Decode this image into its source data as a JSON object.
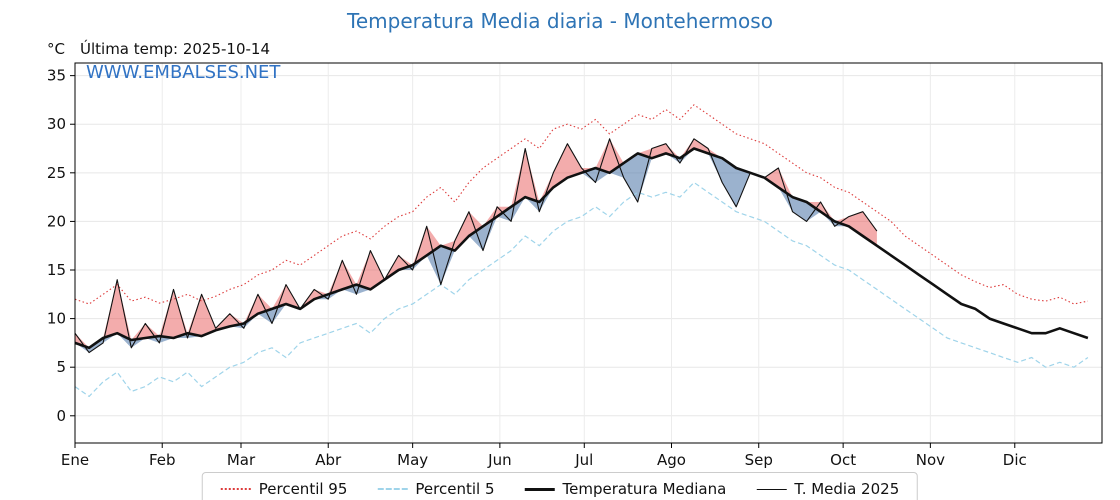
{
  "title": "Temperatura Media diaria - Montehermoso",
  "subtitle": {
    "units": "°C",
    "last_temp_label": "Última temp: 2025-10-14"
  },
  "watermark": "WWW.EMBALSES.NET",
  "legend": {
    "items": [
      {
        "label": "Percentil 95"
      },
      {
        "label": "Percentil 5"
      },
      {
        "label": "Temperatura Mediana"
      },
      {
        "label": "T. Media 2025"
      }
    ]
  },
  "chart_data": {
    "type": "line",
    "title": "Temperatura Media diaria - Montehermoso",
    "xlabel": "",
    "ylabel": "°C",
    "x_unit": "day_of_year",
    "x_step_days": 5,
    "months": [
      "Ene",
      "Feb",
      "Mar",
      "Abr",
      "May",
      "Jun",
      "Jul",
      "Ago",
      "Sep",
      "Oct",
      "Nov",
      "Dic"
    ],
    "month_start_days": [
      0,
      31,
      59,
      90,
      120,
      151,
      181,
      212,
      243,
      273,
      304,
      334
    ],
    "yticks": [
      0,
      5,
      10,
      15,
      20,
      25,
      30,
      35
    ],
    "ylim": [
      -2.8,
      36.3
    ],
    "grid": true,
    "legend_position": "bottom",
    "fills": {
      "above_median": "rgba(228,70,70,0.45)",
      "below_median": "rgba(82,122,170,0.58)"
    },
    "series": [
      {
        "name": "Percentil 95",
        "color": "#dd3b3b",
        "style": "dotted",
        "values": [
          12.0,
          11.5,
          12.5,
          13.5,
          11.8,
          12.2,
          11.6,
          12.0,
          12.5,
          11.8,
          12.3,
          13.0,
          13.5,
          14.5,
          15.0,
          16.0,
          15.5,
          16.5,
          17.5,
          18.5,
          19.0,
          18.2,
          19.5,
          20.5,
          21.0,
          22.5,
          23.5,
          22.0,
          24.0,
          25.5,
          26.5,
          27.5,
          28.5,
          27.5,
          29.5,
          30.0,
          29.5,
          30.5,
          29.0,
          30.0,
          31.0,
          30.5,
          31.5,
          30.5,
          32.0,
          31.0,
          30.0,
          29.0,
          28.5,
          28.0,
          27.0,
          26.0,
          25.0,
          24.5,
          23.5,
          23.0,
          22.0,
          21.0,
          20.0,
          18.5,
          17.5,
          16.5,
          15.5,
          14.5,
          13.8,
          13.2,
          13.5,
          12.5,
          12.0,
          11.8,
          12.2,
          11.5,
          11.8
        ]
      },
      {
        "name": "Percentil 5",
        "color": "#9fd4ea",
        "style": "dashed",
        "values": [
          3.0,
          2.0,
          3.5,
          4.5,
          2.5,
          3.0,
          4.0,
          3.5,
          4.5,
          3.0,
          4.0,
          5.0,
          5.5,
          6.5,
          7.0,
          6.0,
          7.5,
          8.0,
          8.5,
          9.0,
          9.5,
          8.5,
          10.0,
          11.0,
          11.5,
          12.5,
          13.5,
          12.5,
          14.0,
          15.0,
          16.0,
          17.0,
          18.5,
          17.5,
          19.0,
          20.0,
          20.5,
          21.5,
          20.5,
          22.0,
          23.0,
          22.5,
          23.0,
          22.5,
          24.0,
          23.0,
          22.0,
          21.0,
          20.5,
          20.0,
          19.0,
          18.0,
          17.5,
          16.5,
          15.5,
          15.0,
          14.0,
          13.0,
          12.0,
          11.0,
          10.0,
          9.0,
          8.0,
          7.5,
          7.0,
          6.5,
          6.0,
          5.5,
          6.0,
          5.0,
          5.5,
          5.0,
          6.0
        ]
      },
      {
        "name": "Temperatura Mediana",
        "color": "#111111",
        "style": "solid-thick",
        "values": [
          7.5,
          7.0,
          8.0,
          8.5,
          7.8,
          8.0,
          8.2,
          8.0,
          8.5,
          8.2,
          8.8,
          9.2,
          9.5,
          10.5,
          11.0,
          11.5,
          11.0,
          12.0,
          12.5,
          13.0,
          13.5,
          13.0,
          14.0,
          15.0,
          15.5,
          16.5,
          17.5,
          17.0,
          18.5,
          19.5,
          20.5,
          21.5,
          22.5,
          22.0,
          23.5,
          24.5,
          25.0,
          25.5,
          25.0,
          26.0,
          27.0,
          26.5,
          27.0,
          26.5,
          27.5,
          27.0,
          26.5,
          25.5,
          25.0,
          24.5,
          23.5,
          22.5,
          22.0,
          21.0,
          20.0,
          19.5,
          18.5,
          17.5,
          16.5,
          15.5,
          14.5,
          13.5,
          12.5,
          11.5,
          11.0,
          10.0,
          9.5,
          9.0,
          8.5,
          8.5,
          9.0,
          8.5,
          8.0
        ]
      },
      {
        "name": "T. Media 2025",
        "color": "#111111",
        "style": "solid-thin",
        "end_day": 285,
        "values": [
          8.5,
          6.5,
          7.5,
          14.0,
          7.0,
          9.5,
          7.5,
          13.0,
          8.0,
          12.5,
          9.0,
          10.5,
          9.0,
          12.5,
          9.5,
          13.5,
          11.0,
          13.0,
          12.0,
          16.0,
          12.5,
          17.0,
          14.0,
          16.5,
          15.0,
          19.5,
          13.5,
          18.0,
          21.0,
          17.0,
          21.5,
          20.0,
          27.5,
          21.0,
          25.0,
          28.0,
          25.5,
          24.0,
          28.5,
          24.5,
          22.0,
          27.5,
          28.0,
          26.0,
          28.5,
          27.5,
          24.0,
          21.5,
          25.0,
          24.5,
          25.5,
          21.0,
          20.0,
          22.0,
          19.5,
          20.5,
          21.0,
          19.0
        ]
      }
    ]
  }
}
